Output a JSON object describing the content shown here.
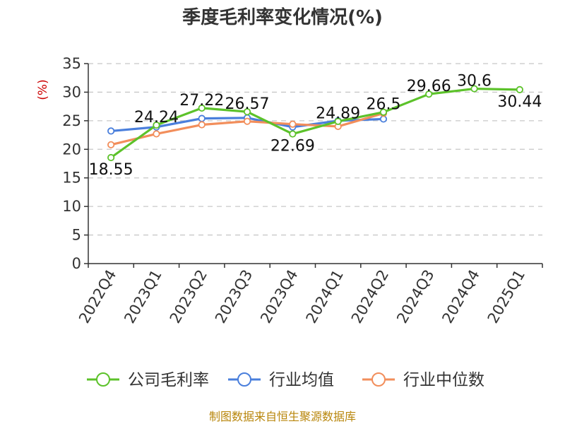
{
  "chart_data": {
    "type": "line",
    "title": "季度毛利率变化情况(%)",
    "ylabel": "(%)",
    "xlabel": "",
    "categories": [
      "2022Q4",
      "2023Q1",
      "2023Q2",
      "2023Q3",
      "2023Q4",
      "2024Q1",
      "2024Q2",
      "2024Q3",
      "2024Q4",
      "2025Q1"
    ],
    "ylim": [
      0,
      35
    ],
    "yticks": [
      0,
      5,
      10,
      15,
      20,
      25,
      30,
      35
    ],
    "grid": true,
    "legend_position": "bottom",
    "series": [
      {
        "name": "公司毛利率",
        "color": "#5cc22a",
        "values": [
          18.55,
          24.24,
          27.22,
          26.57,
          22.69,
          24.89,
          26.5,
          29.66,
          30.6,
          30.44
        ],
        "labels": [
          "18.55",
          "24.24",
          "27.22",
          "26.57",
          "22.69",
          "24.89",
          "26.5",
          "29.66",
          "30.6",
          "30.44"
        ]
      },
      {
        "name": "行业均值",
        "color": "#4a7fdc",
        "values": [
          23.2,
          23.9,
          25.4,
          25.5,
          23.9,
          25.0,
          25.3,
          null,
          null,
          null
        ]
      },
      {
        "name": "行业中位数",
        "color": "#f28e5b",
        "values": [
          20.8,
          22.7,
          24.3,
          24.9,
          24.4,
          24.0,
          26.3,
          null,
          null,
          null
        ]
      }
    ],
    "source": "制图数据来自恒生聚源数据库"
  }
}
